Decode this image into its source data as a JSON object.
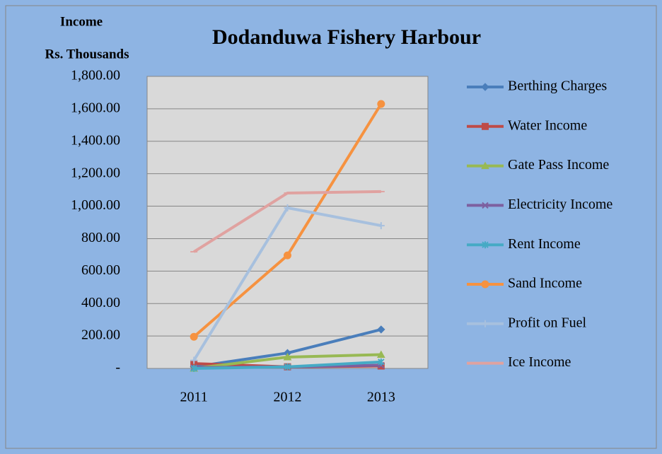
{
  "chart_data": {
    "type": "line",
    "title": "Dodanduwa Fishery Harbour",
    "y_label": [
      "Income",
      "Rs. Thousands"
    ],
    "categories": [
      "2011",
      "2012",
      "2013"
    ],
    "series": [
      {
        "name": "Berthing Charges",
        "color": "#4a7ebb",
        "marker": "diamond",
        "values": [
          10,
          95,
          240
        ]
      },
      {
        "name": "Water Income",
        "color": "#be4b48",
        "marker": "square",
        "values": [
          30,
          10,
          15
        ]
      },
      {
        "name": "Gate Pass Income",
        "color": "#98b954",
        "marker": "triangle",
        "values": [
          0,
          70,
          85
        ]
      },
      {
        "name": "Electricity Income",
        "color": "#7d60a0",
        "marker": "x",
        "values": [
          5,
          10,
          20
        ]
      },
      {
        "name": "Rent Income",
        "color": "#46aac5",
        "marker": "star",
        "values": [
          0,
          10,
          40
        ]
      },
      {
        "name": "Sand Income",
        "color": "#f69240",
        "marker": "circle",
        "values": [
          195,
          697,
          1630
        ]
      },
      {
        "name": "Profit on Fuel",
        "color": "#a7c0de",
        "marker": "plus",
        "values": [
          50,
          990,
          880
        ]
      },
      {
        "name": "Ice Income",
        "color": "#e0a2a0",
        "marker": "dash",
        "values": [
          719,
          1081,
          1090
        ]
      }
    ],
    "ylim": [
      0,
      1800
    ],
    "yticks": [
      {
        "value": 0,
        "label": "-"
      },
      {
        "value": 200,
        "label": "200.00"
      },
      {
        "value": 400,
        "label": "400.00"
      },
      {
        "value": 600,
        "label": "600.00"
      },
      {
        "value": 800,
        "label": "800.00"
      },
      {
        "value": 1000,
        "label": "1,000.00"
      },
      {
        "value": 1200,
        "label": "1,200.00"
      },
      {
        "value": 1400,
        "label": "1,400.00"
      },
      {
        "value": 1600,
        "label": "1,600.00"
      },
      {
        "value": 1800,
        "label": "1,800.00"
      }
    ],
    "grid": true,
    "legend": "right"
  }
}
